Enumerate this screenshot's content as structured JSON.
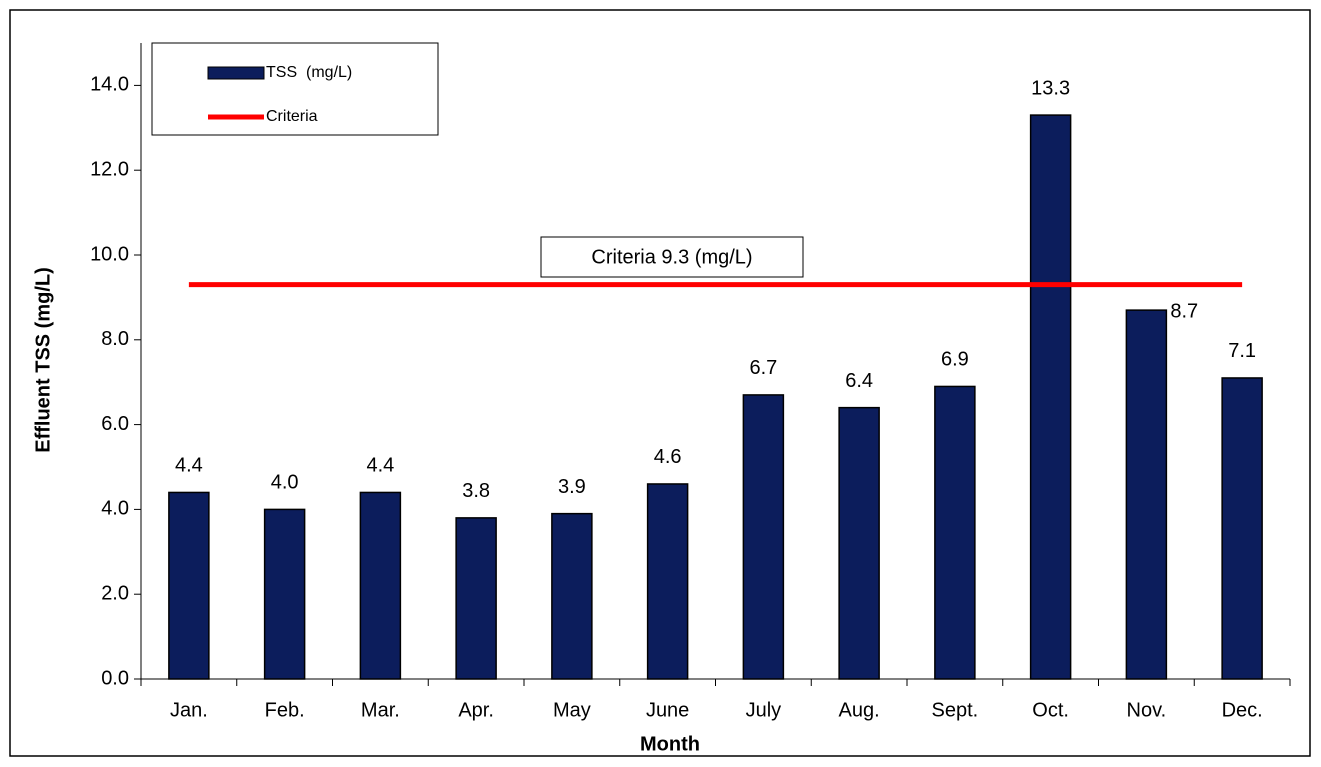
{
  "chart_data": {
    "type": "bar",
    "x_label": "Month",
    "y_label": "Effluent TSS (mg/L)",
    "annotation": "Criteria 9.3 (mg/L)",
    "categories": [
      "Jan.",
      "Feb.",
      "Mar.",
      "Apr.",
      "May",
      "June",
      "July",
      "Aug.",
      "Sept.",
      "Oct.",
      "Nov.",
      "Dec."
    ],
    "series": [
      {
        "name": "TSS  (mg/L)",
        "color": "#0c1d5c",
        "type": "bar",
        "values": [
          4.4,
          4.0,
          4.4,
          3.8,
          3.9,
          4.6,
          6.7,
          6.4,
          6.9,
          13.3,
          8.7,
          7.1
        ],
        "value_labels": [
          "4.4",
          "4.0",
          "4.4",
          "3.8",
          "3.9",
          "4.6",
          "6.7",
          "6.4",
          "6.9",
          "13.3",
          "8.7",
          "7.1"
        ]
      },
      {
        "name": "Criteria",
        "color": "#ff0000",
        "type": "line",
        "values": [
          9.3,
          9.3,
          9.3,
          9.3,
          9.3,
          9.3,
          9.3,
          9.3,
          9.3,
          9.3,
          9.3,
          9.3
        ]
      }
    ],
    "ylim": [
      0,
      15
    ],
    "yticks": [
      {
        "value": 0,
        "label": "0.0"
      },
      {
        "value": 2,
        "label": "2.0"
      },
      {
        "value": 4,
        "label": "4.0"
      },
      {
        "value": 6,
        "label": "6.0"
      },
      {
        "value": 8,
        "label": "8.0"
      },
      {
        "value": 10,
        "label": "10.0"
      },
      {
        "value": 12,
        "label": "12.0"
      },
      {
        "value": 14,
        "label": "14.0"
      }
    ],
    "grid": false,
    "legend": "top-left"
  }
}
